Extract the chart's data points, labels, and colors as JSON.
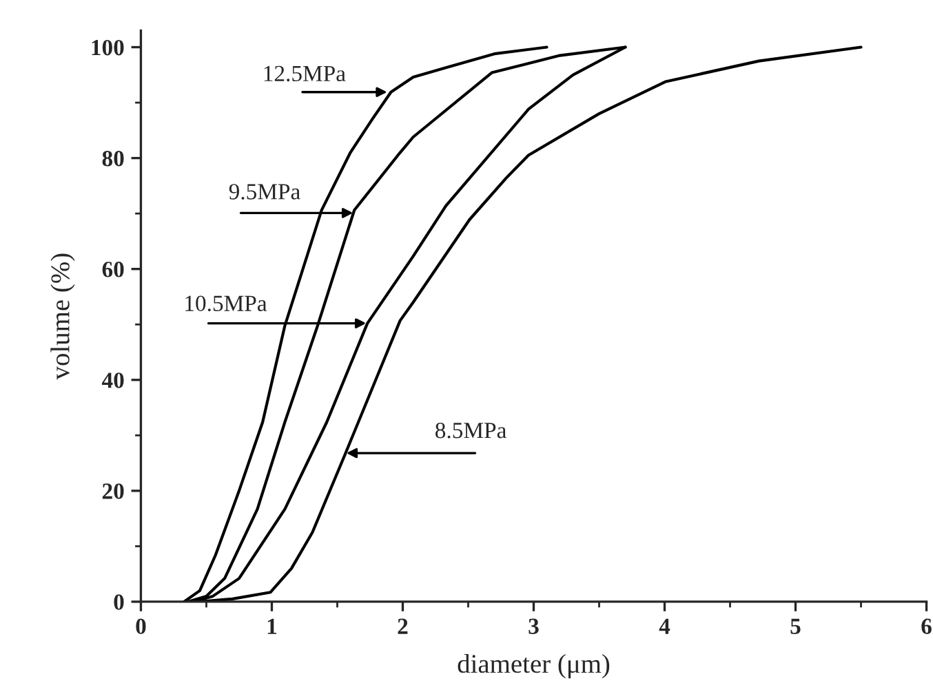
{
  "chart_data": {
    "type": "line",
    "xlabel": "diameter (μm)",
    "ylabel": "volume (%)",
    "xlim": [
      0,
      6
    ],
    "ylim": [
      0,
      103
    ],
    "xticks": [
      0,
      1,
      2,
      3,
      4,
      5,
      6
    ],
    "yticks": [
      0,
      20,
      40,
      60,
      80,
      100
    ],
    "grid": false,
    "legend": false,
    "marker": "none",
    "line_style": "solid",
    "series": [
      {
        "color": "#000000",
        "x": [
          0.33,
          0.45,
          0.57,
          0.75,
          0.93,
          1.1,
          1.38,
          1.6,
          1.77,
          1.91,
          2.08,
          2.33,
          2.7,
          3.1
        ],
        "values": [
          0,
          2,
          8.4,
          20,
          32.4,
          49.8,
          70.6,
          81,
          87.1,
          91.9,
          94.6,
          96.3,
          98.8,
          100
        ]
      },
      {
        "color": "#000000",
        "x": [
          0.36,
          0.5,
          0.64,
          0.89,
          1.1,
          1.35,
          1.63,
          1.98,
          2.08,
          2.68,
          3.2,
          3.7
        ],
        "values": [
          0,
          1,
          4.2,
          16.7,
          32.4,
          49.8,
          70.6,
          81,
          83.8,
          95.4,
          98.5,
          100
        ]
      },
      {
        "color": "#000000",
        "x": [
          0.4,
          0.55,
          0.75,
          1.1,
          1.42,
          1.73,
          2.08,
          2.33,
          2.96,
          3.3,
          3.7
        ],
        "values": [
          0,
          1,
          4.2,
          16.7,
          32.4,
          50.2,
          62.3,
          71.4,
          88.8,
          95,
          100
        ]
      },
      {
        "color": "#000000",
        "x": [
          0.45,
          0.7,
          0.99,
          1.15,
          1.31,
          1.56,
          1.98,
          2.08,
          2.51,
          2.79,
          2.96,
          3.5,
          4.01,
          4.72,
          5.5
        ],
        "values": [
          0,
          0.5,
          1.7,
          6,
          12.5,
          26.6,
          50.7,
          54,
          68.9,
          76.4,
          80.5,
          88,
          93.8,
          97.5,
          100
        ]
      }
    ],
    "annotations": [
      {
        "text": "12.5MPa",
        "x": 1.91,
        "y": 91.9
      },
      {
        "text": "9.5MPa",
        "x": 1.65,
        "y": 70.1
      },
      {
        "text": "10.5MPa",
        "x": 1.75,
        "y": 50.2
      },
      {
        "text": "8.5MPa",
        "x": 1.54,
        "y": 26.8
      }
    ]
  }
}
